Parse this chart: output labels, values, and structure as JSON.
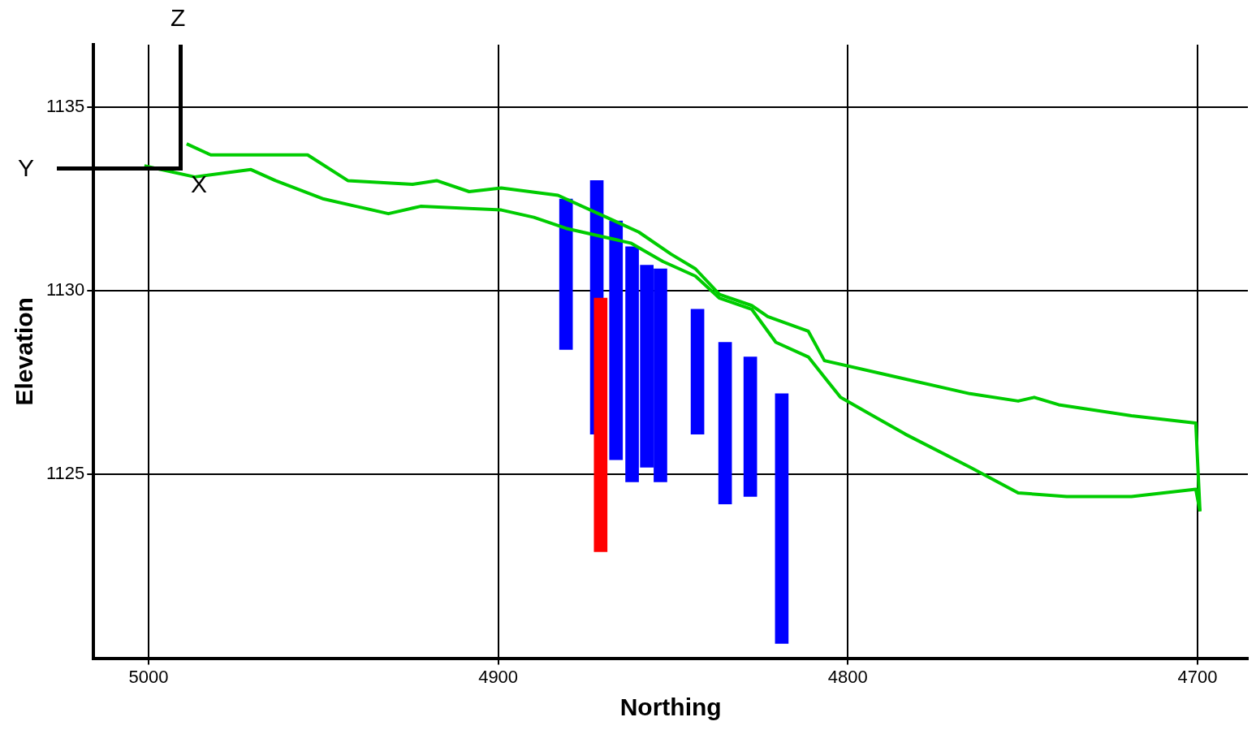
{
  "chart_data": {
    "type": "line",
    "xlabel": "Northing",
    "ylabel": "Elevation",
    "xlim": [
      5015.7,
      4685.6
    ],
    "ylim": [
      1120,
      1136.7
    ],
    "xticks": [
      5000,
      4900,
      4800,
      4700
    ],
    "yticks": [
      1125,
      1130,
      1135
    ],
    "grid": true,
    "legend": false,
    "marker": "none",
    "line_style": "solid",
    "annotations": [
      "Z",
      "Y",
      "X"
    ],
    "series": [
      {
        "type": "bar",
        "x": [
          4880.6,
          4871.8,
          4870.7,
          4866.3,
          4861.7,
          4857.5,
          4853.6,
          4843.0,
          4835.1,
          4827.9,
          4818.9
        ],
        "base": [
          1128.4,
          1126.1,
          1122.9,
          1125.4,
          1124.8,
          1125.2,
          1124.8,
          1126.1,
          1124.2,
          1124.4,
          1120.4
        ],
        "values": [
          4.1,
          6.9,
          6.9,
          6.5,
          6.4,
          5.5,
          5.8,
          3.4,
          4.4,
          3.8,
          6.8
        ],
        "colors": [
          "#0000ff",
          "#0000ff",
          "#ff0000",
          "#0000ff",
          "#0000ff",
          "#0000ff",
          "#0000ff",
          "#0000ff",
          "#0000ff",
          "#0000ff",
          "#0000ff"
        ]
      },
      {
        "color": "#00cc00",
        "x": [
          4989.1,
          4982.2,
          4954.5,
          4943.0,
          4924.5,
          4917.6,
          4908.3,
          4899.1,
          4882.9,
          4866.7,
          4859.8,
          4850.6,
          4843.6,
          4836.7,
          4827.5,
          4822.9,
          4811.3,
          4806.7,
          4788.2,
          4765.1,
          4751.3,
          4746.7,
          4739.7,
          4718.9,
          4700.5,
          4699.3
        ],
        "values": [
          1134.0,
          1133.7,
          1133.7,
          1133.0,
          1132.9,
          1133.0,
          1132.7,
          1132.8,
          1132.6,
          1131.9,
          1131.6,
          1131.0,
          1130.6,
          1129.9,
          1129.6,
          1129.3,
          1128.9,
          1128.1,
          1127.7,
          1127.2,
          1127.0,
          1127.1,
          1126.9,
          1126.6,
          1126.4,
          1124.0
        ]
      },
      {
        "color": "#00cc00",
        "x": [
          5001.2,
          4986.8,
          4970.7,
          4963.7,
          4949.9,
          4940.6,
          4931.4,
          4922.2,
          4899.1,
          4889.8,
          4880.6,
          4871.4,
          4862.1,
          4852.9,
          4843.6,
          4836.7,
          4827.5,
          4820.6,
          4811.3,
          4802.1,
          4783.6,
          4765.1,
          4751.3,
          4737.4,
          4718.9,
          4700.5,
          4699.3
        ],
        "values": [
          1133.4,
          1133.1,
          1133.3,
          1133.0,
          1132.5,
          1132.3,
          1132.1,
          1132.3,
          1132.2,
          1132.0,
          1131.7,
          1131.5,
          1131.3,
          1130.8,
          1130.4,
          1129.8,
          1129.5,
          1128.6,
          1128.2,
          1127.1,
          1126.1,
          1125.2,
          1124.5,
          1124.4,
          1124.4,
          1124.6,
          1124.0
        ]
      }
    ]
  }
}
